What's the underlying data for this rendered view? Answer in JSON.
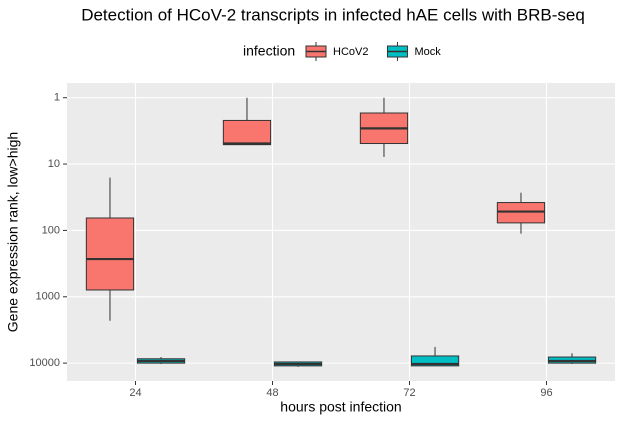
{
  "chart_data": {
    "type": "boxplot",
    "title": "Detection of HCoV-2 transcripts in infected hAE cells with BRB-seq",
    "x_label": "hours post infection",
    "y_label": "Gene expression rank, low>high",
    "legend_title": "infection",
    "legend_position": "top",
    "categories": [
      "24",
      "48",
      "72",
      "96"
    ],
    "log_scale": true,
    "grid": true,
    "ylim": [
      18600,
      0.6
    ],
    "yticks": [
      1,
      10,
      100,
      1000,
      10000
    ],
    "series": [
      {
        "name": "HCoV2",
        "color": "#F8766D",
        "boxes": [
          {
            "min": 16,
            "q1": 65,
            "median": 270,
            "q3": 790,
            "max": 2300
          },
          {
            "min": 1,
            "q1": 2.2,
            "median": 4.9,
            "q3": 5.1,
            "max": 5.1
          },
          {
            "min": 1,
            "q1": 1.7,
            "median": 2.9,
            "q3": 4.9,
            "max": 7.8
          },
          {
            "min": 27,
            "q1": 38,
            "median": 52,
            "q3": 77,
            "max": 112
          }
        ]
      },
      {
        "name": "Mock",
        "color": "#00BFC4",
        "boxes": [
          {
            "min": 8100,
            "q1": 8600,
            "median": 9300,
            "q3": 10000,
            "max": 10300
          },
          {
            "min": 9600,
            "q1": 9600,
            "median": 10300,
            "q3": 11000,
            "max": 11400
          },
          {
            "min": 5700,
            "q1": 7800,
            "median": 10300,
            "q3": 11000,
            "max": 11000
          },
          {
            "min": 7100,
            "q1": 8100,
            "median": 9300,
            "q3": 10000,
            "max": 10300
          }
        ]
      }
    ]
  }
}
